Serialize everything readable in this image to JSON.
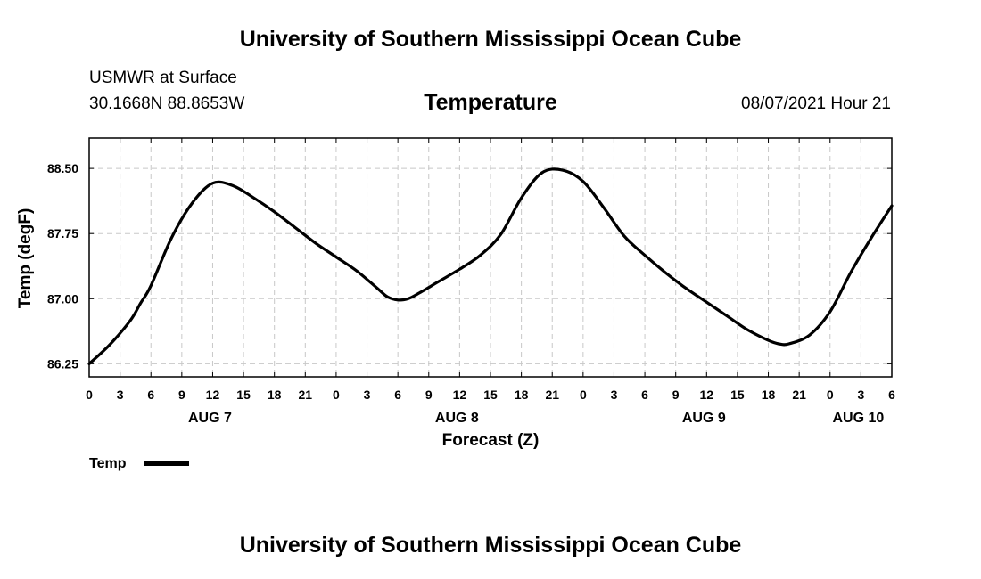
{
  "header": {
    "title": "University of Southern Mississippi Ocean Cube",
    "station": "USMWR at Surface",
    "coordinates": "30.1668N  88.8653W",
    "variable": "Temperature",
    "timestamp": "08/07/2021 Hour 21"
  },
  "footer": {
    "title": "University of Southern Mississippi Ocean Cube"
  },
  "chart_data": {
    "type": "line",
    "title": "Temperature",
    "xlabel": "Forecast (Z)",
    "ylabel": "Temp (degF)",
    "xlim": [
      0,
      78
    ],
    "ylim": [
      86.1,
      88.85
    ],
    "yticks": [
      86.25,
      87.0,
      87.75,
      88.5
    ],
    "ytick_labels": [
      "86.25",
      "87.00",
      "87.75",
      "88.50"
    ],
    "xtick_hours": [
      0,
      3,
      6,
      9,
      12,
      15,
      18,
      21,
      24,
      27,
      30,
      33,
      36,
      39,
      42,
      45,
      48,
      51,
      54,
      57,
      60,
      63,
      66,
      69,
      72,
      75,
      78
    ],
    "xtick_labels": [
      "0",
      "3",
      "6",
      "9",
      "12",
      "15",
      "18",
      "21",
      "0",
      "3",
      "6",
      "9",
      "12",
      "15",
      "18",
      "21",
      "0",
      "3",
      "6",
      "9",
      "12",
      "15",
      "18",
      "21",
      "0",
      "3",
      "6"
    ],
    "day_labels": [
      {
        "hour": 12,
        "label": "AUG 7"
      },
      {
        "hour": 36,
        "label": "AUG 8"
      },
      {
        "hour": 60,
        "label": "AUG 9"
      },
      {
        "hour": 75,
        "label": "AUG 10"
      }
    ],
    "grid": true,
    "legend": "bottom-left",
    "series": [
      {
        "name": "Temp",
        "x": [
          0,
          2,
          4,
          5,
          6,
          8,
          10,
          12,
          14,
          16,
          18,
          20,
          22,
          24,
          26,
          28,
          29,
          30,
          31,
          32,
          34,
          36,
          38,
          40,
          42,
          44,
          46,
          48,
          50,
          52,
          54,
          56,
          58,
          60,
          62,
          64,
          66,
          67,
          68,
          70,
          72,
          74,
          76,
          78
        ],
        "y": [
          86.25,
          86.47,
          86.75,
          86.95,
          87.15,
          87.7,
          88.1,
          88.33,
          88.3,
          88.16,
          88.0,
          87.82,
          87.64,
          87.48,
          87.32,
          87.12,
          87.02,
          86.985,
          87.0,
          87.06,
          87.2,
          87.34,
          87.5,
          87.74,
          88.16,
          88.45,
          88.48,
          88.35,
          88.05,
          87.72,
          87.5,
          87.3,
          87.12,
          86.96,
          86.8,
          86.64,
          86.52,
          86.48,
          86.48,
          86.58,
          86.85,
          87.3,
          87.7,
          88.07
        ]
      }
    ]
  }
}
